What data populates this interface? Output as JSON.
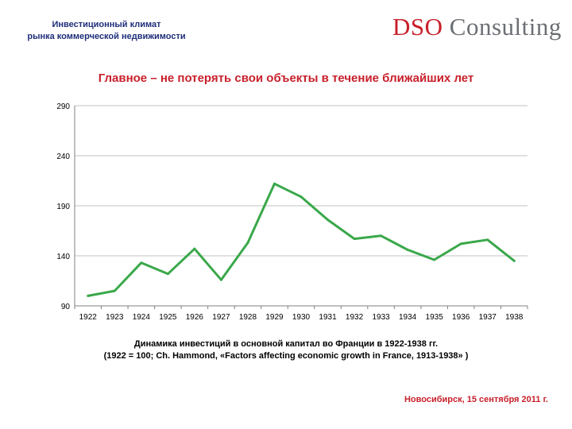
{
  "header": {
    "subtitle_line1": "Инвестиционный климат",
    "subtitle_line2": "рынка коммерческой недвижимости",
    "logo_dso": "DSO",
    "logo_rest": " Consulting"
  },
  "chart_data": {
    "type": "line",
    "title": "Главное – не потерять свои объекты в течение ближайших лет",
    "categories": [
      "1922",
      "1923",
      "1924",
      "1925",
      "1926",
      "1927",
      "1928",
      "1929",
      "1930",
      "1931",
      "1932",
      "1933",
      "1934",
      "1935",
      "1936",
      "1937",
      "1938"
    ],
    "series": [
      {
        "values": [
          100,
          105,
          133,
          122,
          147,
          116,
          153,
          212,
          199,
          176,
          157,
          160,
          146,
          136,
          152,
          156,
          135
        ]
      }
    ],
    "yticks": [
      90,
      140,
      190,
      240,
      290
    ],
    "ylim": [
      90,
      290
    ],
    "grid": true,
    "line_color": "#3aa84a",
    "grid_color": "#c0c0c0"
  },
  "caption": {
    "line1": "Динамика инвестиций в основной капитал во Франции в 1922-1938 гг.",
    "line2": "(1922 = 100; Ch. Hammond, «Factors affecting economic growth in France, 1913-1938» )"
  },
  "footer": {
    "text": "Новосибирск, 15 сентября 2011 г."
  }
}
